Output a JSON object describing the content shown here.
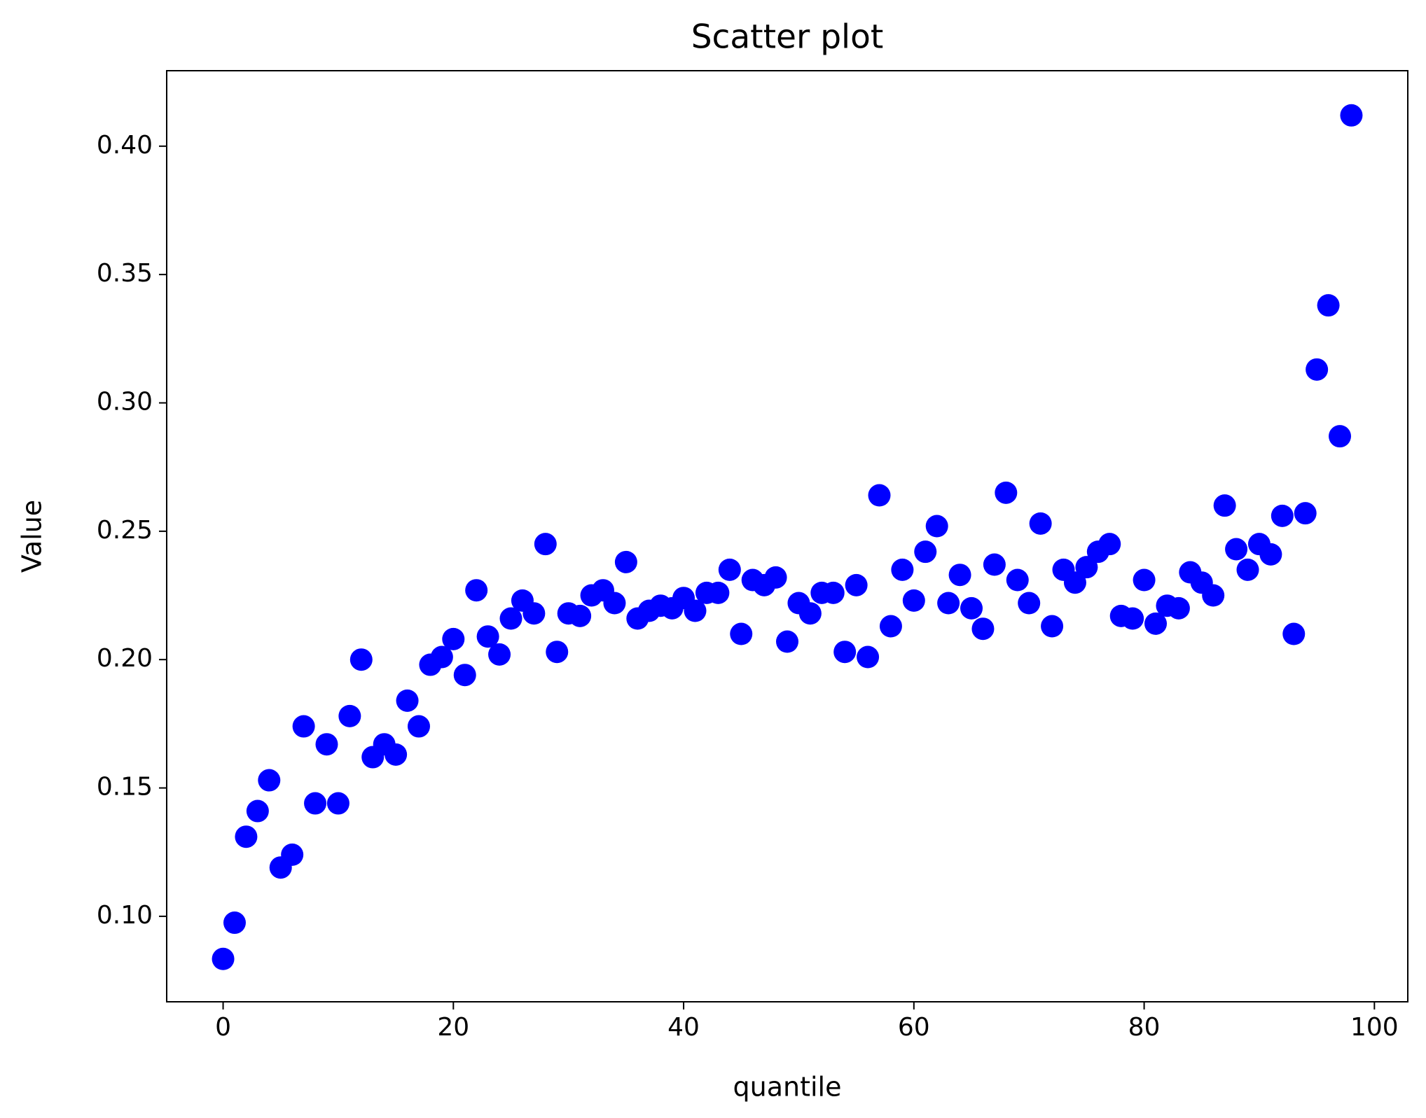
{
  "chart_data": {
    "type": "scatter",
    "title": "Scatter plot",
    "x_label": "quantile",
    "y_label": "Value",
    "x": [
      0,
      1,
      2,
      3,
      4,
      5,
      6,
      7,
      8,
      9,
      10,
      11,
      12,
      13,
      14,
      15,
      16,
      17,
      18,
      19,
      20,
      21,
      22,
      23,
      24,
      25,
      26,
      27,
      28,
      29,
      30,
      31,
      32,
      33,
      34,
      35,
      36,
      37,
      38,
      39,
      40,
      41,
      42,
      43,
      44,
      45,
      46,
      47,
      48,
      49,
      50,
      51,
      52,
      53,
      54,
      55,
      56,
      57,
      58,
      59,
      60,
      61,
      62,
      63,
      64,
      65,
      66,
      67,
      68,
      69,
      70,
      71,
      72,
      73,
      74,
      75,
      76,
      77,
      78,
      79,
      80,
      81,
      82,
      83,
      84,
      85,
      86,
      87,
      88,
      89,
      90,
      91,
      92,
      93,
      94,
      95,
      96,
      97,
      98
    ],
    "values": [
      0.0834,
      0.0975,
      0.131,
      0.141,
      0.153,
      0.119,
      0.124,
      0.174,
      0.144,
      0.167,
      0.144,
      0.178,
      0.2,
      0.162,
      0.167,
      0.163,
      0.184,
      0.174,
      0.198,
      0.201,
      0.208,
      0.194,
      0.227,
      0.209,
      0.202,
      0.216,
      0.223,
      0.218,
      0.245,
      0.203,
      0.218,
      0.217,
      0.225,
      0.227,
      0.222,
      0.238,
      0.216,
      0.219,
      0.221,
      0.22,
      0.224,
      0.219,
      0.226,
      0.226,
      0.235,
      0.21,
      0.231,
      0.229,
      0.232,
      0.207,
      0.222,
      0.218,
      0.226,
      0.226,
      0.203,
      0.229,
      0.201,
      0.264,
      0.213,
      0.235,
      0.223,
      0.242,
      0.252,
      0.222,
      0.233,
      0.22,
      0.212,
      0.237,
      0.265,
      0.231,
      0.222,
      0.253,
      0.213,
      0.235,
      0.23,
      0.236,
      0.242,
      0.245,
      0.217,
      0.216,
      0.231,
      0.214,
      0.221,
      0.22,
      0.234,
      0.23,
      0.225,
      0.26,
      0.243,
      0.235,
      0.245,
      0.241,
      0.256,
      0.21,
      0.257,
      0.313,
      0.338,
      0.287,
      0.412
    ],
    "color": "#0000ff",
    "xlim": [
      -4.9,
      102.9
    ],
    "ylim": [
      0.0667,
      0.4294
    ],
    "xticks": [
      0,
      20,
      40,
      60,
      80,
      100
    ],
    "yticks": [
      {
        "value": 0.1,
        "label": "0.10"
      },
      {
        "value": 0.15,
        "label": "0.15"
      },
      {
        "value": 0.2,
        "label": "0.20"
      },
      {
        "value": 0.25,
        "label": "0.25"
      },
      {
        "value": 0.3,
        "label": "0.30"
      },
      {
        "value": 0.35,
        "label": "0.35"
      },
      {
        "value": 0.4,
        "label": "0.40"
      }
    ]
  }
}
